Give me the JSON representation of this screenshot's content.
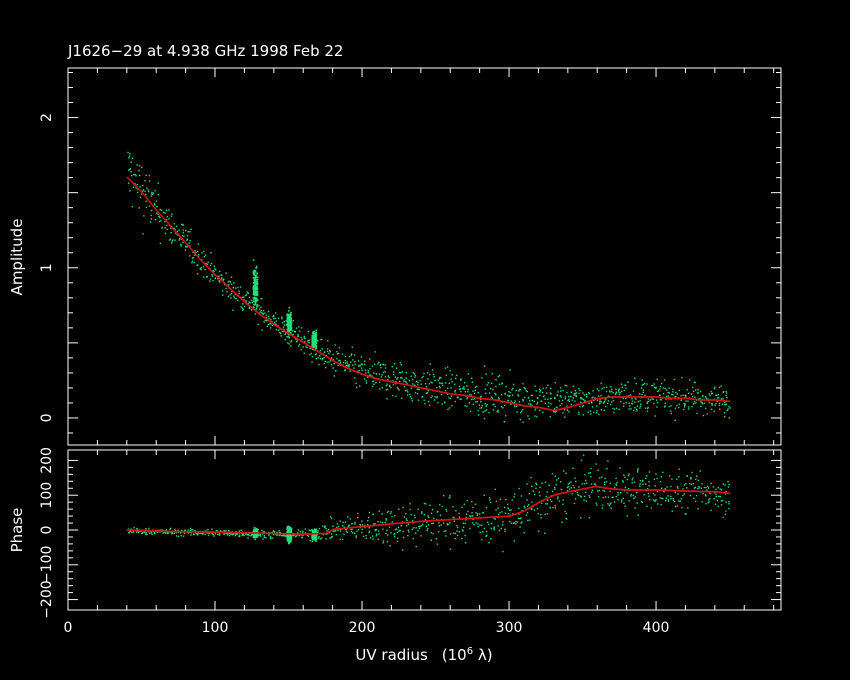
{
  "chart_data": [
    {
      "type": "scatter",
      "panel": "amplitude",
      "title": "J1626−29 at 4.938 GHz 1998 Feb 22",
      "ylabel": "Amplitude",
      "xlim": [
        0,
        485
      ],
      "ylim": [
        -0.18,
        2.33
      ],
      "xticks": [
        "0",
        "100",
        "200",
        "300",
        "400"
      ],
      "yticks": [
        "0",
        "1",
        "2"
      ],
      "background": "#000000",
      "colors": {
        "data": "#22e07a",
        "model": "#e01010",
        "axes": "#ffffff"
      },
      "series": [
        {
          "name": "",
          "kind": "model-line",
          "x": [
            40,
            50,
            60,
            70,
            80,
            90,
            100,
            110,
            120,
            130,
            140,
            150,
            160,
            170,
            180,
            190,
            200,
            210,
            220,
            230,
            240,
            250,
            260,
            270,
            280,
            290,
            300,
            310,
            320,
            330,
            340,
            350,
            360,
            370,
            380,
            390,
            400,
            410,
            420,
            430,
            440,
            450
          ],
          "y": [
            1.6,
            1.5,
            1.38,
            1.27,
            1.16,
            1.05,
            0.95,
            0.86,
            0.77,
            0.69,
            0.62,
            0.56,
            0.5,
            0.44,
            0.38,
            0.33,
            0.29,
            0.26,
            0.24,
            0.22,
            0.2,
            0.18,
            0.16,
            0.15,
            0.13,
            0.12,
            0.1,
            0.08,
            0.07,
            0.05,
            0.07,
            0.1,
            0.13,
            0.14,
            0.14,
            0.14,
            0.14,
            0.13,
            0.13,
            0.12,
            0.12,
            0.11
          ]
        },
        {
          "name": "",
          "kind": "scatter-band",
          "x": [
            40,
            50,
            60,
            70,
            80,
            90,
            100,
            110,
            120,
            130,
            140,
            150,
            160,
            170,
            180,
            190,
            200,
            210,
            220,
            230,
            240,
            250,
            260,
            270,
            280,
            290,
            300,
            310,
            320,
            330,
            340,
            350,
            360,
            370,
            380,
            390,
            400,
            410,
            420,
            430,
            440,
            450
          ],
          "y": [
            1.65,
            1.52,
            1.38,
            1.27,
            1.17,
            1.06,
            0.95,
            0.86,
            0.8,
            0.72,
            0.64,
            0.57,
            0.52,
            0.44,
            0.39,
            0.35,
            0.3,
            0.28,
            0.26,
            0.24,
            0.22,
            0.2,
            0.19,
            0.17,
            0.16,
            0.15,
            0.14,
            0.13,
            0.12,
            0.12,
            0.12,
            0.12,
            0.13,
            0.14,
            0.15,
            0.15,
            0.15,
            0.14,
            0.14,
            0.13,
            0.13,
            0.12
          ],
          "spread": [
            0.22,
            0.2,
            0.15,
            0.12,
            0.1,
            0.09,
            0.08,
            0.08,
            0.08,
            0.08,
            0.08,
            0.08,
            0.08,
            0.08,
            0.1,
            0.1,
            0.11,
            0.11,
            0.12,
            0.12,
            0.12,
            0.12,
            0.12,
            0.12,
            0.12,
            0.12,
            0.12,
            0.12,
            0.11,
            0.1,
            0.1,
            0.1,
            0.1,
            0.1,
            0.1,
            0.1,
            0.1,
            0.1,
            0.1,
            0.09,
            0.09,
            0.09
          ]
        },
        {
          "name": "",
          "kind": "dense-cluster",
          "x": [
            127,
            150,
            167
          ],
          "y": [
            0.88,
            0.63,
            0.52
          ],
          "spread": [
            0.1,
            0.06,
            0.05
          ]
        }
      ]
    },
    {
      "type": "scatter",
      "panel": "phase",
      "xlabel": "UV radius",
      "xlabel_unit": "(10",
      "xlabel_exp": "6",
      "xlabel_tail": " λ)",
      "ylabel": "Phase",
      "xlim": [
        0,
        485
      ],
      "ylim": [
        -230,
        230
      ],
      "xticks": [
        "0",
        "100",
        "200",
        "300",
        "400"
      ],
      "yticks": [
        "−200",
        "−100",
        "0",
        "100",
        "200"
      ],
      "series": [
        {
          "name": "",
          "kind": "model-line",
          "x": [
            40,
            60,
            80,
            100,
            120,
            140,
            160,
            175,
            180,
            200,
            220,
            240,
            260,
            280,
            300,
            310,
            320,
            330,
            340,
            350,
            358,
            370,
            380,
            400,
            420,
            440,
            450
          ],
          "y": [
            0,
            -3,
            -5,
            -6,
            -8,
            -10,
            -12,
            -10,
            2,
            10,
            18,
            25,
            30,
            35,
            40,
            55,
            80,
            100,
            110,
            118,
            125,
            118,
            115,
            115,
            112,
            110,
            105
          ]
        },
        {
          "name": "",
          "kind": "scatter-band",
          "x": [
            40,
            60,
            80,
            100,
            120,
            140,
            160,
            180,
            200,
            220,
            240,
            260,
            280,
            300,
            320,
            340,
            360,
            380,
            400,
            420,
            440,
            450
          ],
          "y": [
            0,
            -3,
            -5,
            -6,
            -8,
            -10,
            -12,
            2,
            10,
            18,
            25,
            30,
            35,
            40,
            80,
            110,
            125,
            115,
            115,
            112,
            110,
            105
          ],
          "spread": [
            8,
            8,
            9,
            10,
            10,
            12,
            12,
            25,
            40,
            55,
            60,
            65,
            65,
            70,
            75,
            70,
            65,
            60,
            55,
            55,
            50,
            50
          ]
        },
        {
          "name": "",
          "kind": "dense-cluster",
          "x": [
            127,
            150,
            167
          ],
          "y": [
            -8,
            -10,
            -12
          ],
          "spread": [
            12,
            18,
            12
          ]
        }
      ]
    }
  ]
}
